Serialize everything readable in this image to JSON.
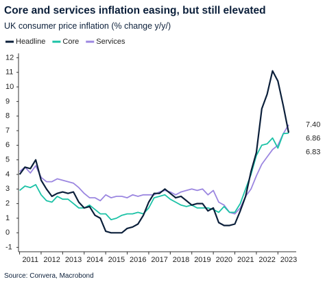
{
  "chart_data": {
    "type": "line",
    "title": "Core and services inflation easing, but still elevated",
    "subtitle": "UK consumer price inflation (% change y/y/)",
    "source": "Source: Convera, Macrobond",
    "x": [
      2011,
      2011.25,
      2011.5,
      2011.75,
      2012,
      2012.25,
      2012.5,
      2012.75,
      2013,
      2013.25,
      2013.5,
      2013.75,
      2014,
      2014.25,
      2014.5,
      2014.75,
      2015,
      2015.25,
      2015.5,
      2015.75,
      2016,
      2016.25,
      2016.5,
      2016.75,
      2017,
      2017.25,
      2017.5,
      2017.75,
      2018,
      2018.25,
      2018.5,
      2018.75,
      2019,
      2019.25,
      2019.5,
      2019.75,
      2020,
      2020.25,
      2020.5,
      2020.75,
      2021,
      2021.25,
      2021.5,
      2021.75,
      2022,
      2022.25,
      2022.5,
      2022.75,
      2023,
      2023.25,
      2023.5
    ],
    "series": [
      {
        "name": "Headline",
        "color": "#0b1f3a",
        "values": [
          4.0,
          4.5,
          4.4,
          5.0,
          3.6,
          3.0,
          2.5,
          2.7,
          2.8,
          2.7,
          2.8,
          2.1,
          1.7,
          1.8,
          1.2,
          1.0,
          0.1,
          0.0,
          0.0,
          0.0,
          0.3,
          0.4,
          0.6,
          1.2,
          2.1,
          2.7,
          2.7,
          3.0,
          2.7,
          2.4,
          2.5,
          2.2,
          1.9,
          2.0,
          2.0,
          1.5,
          1.7,
          0.7,
          0.5,
          0.5,
          0.6,
          1.5,
          2.5,
          4.2,
          5.5,
          8.5,
          9.5,
          11.1,
          10.4,
          8.7,
          6.86
        ],
        "value_labels": [
          null,
          null,
          null,
          null,
          null,
          null,
          null,
          null,
          null,
          null,
          null,
          null,
          null,
          null,
          null,
          null,
          null,
          null,
          null,
          null,
          null,
          null,
          null,
          null,
          null,
          null,
          null,
          null,
          null,
          null,
          null,
          null,
          null,
          null,
          null,
          null,
          null,
          null,
          null,
          null,
          null,
          null,
          null,
          null,
          null,
          null,
          null,
          null,
          null,
          null,
          "6.86"
        ]
      },
      {
        "name": "Core",
        "color": "#1bc2a6",
        "values": [
          2.9,
          3.2,
          3.1,
          3.3,
          2.6,
          2.2,
          2.1,
          2.5,
          2.3,
          2.3,
          2.0,
          1.7,
          1.7,
          1.9,
          1.6,
          1.3,
          1.3,
          0.9,
          1.0,
          1.2,
          1.3,
          1.3,
          1.4,
          1.3,
          1.7,
          2.4,
          2.5,
          2.6,
          2.3,
          2.1,
          1.9,
          1.8,
          1.9,
          1.7,
          1.7,
          1.7,
          1.6,
          1.4,
          1.8,
          1.4,
          1.4,
          2.0,
          3.0,
          4.0,
          5.3,
          6.0,
          6.1,
          6.5,
          5.8,
          6.8,
          6.83
        ],
        "value_labels": [
          null,
          null,
          null,
          null,
          null,
          null,
          null,
          null,
          null,
          null,
          null,
          null,
          null,
          null,
          null,
          null,
          null,
          null,
          null,
          null,
          null,
          null,
          null,
          null,
          null,
          null,
          null,
          null,
          null,
          null,
          null,
          null,
          null,
          null,
          null,
          null,
          null,
          null,
          null,
          null,
          null,
          null,
          null,
          null,
          null,
          null,
          null,
          null,
          null,
          null,
          "6.83"
        ]
      },
      {
        "name": "Services",
        "color": "#9b86e0",
        "values": [
          4.2,
          4.5,
          4.1,
          4.6,
          3.8,
          3.5,
          3.5,
          3.7,
          3.6,
          3.5,
          3.4,
          3.1,
          2.7,
          2.4,
          2.4,
          2.2,
          2.6,
          2.4,
          2.5,
          2.5,
          2.4,
          2.6,
          2.5,
          2.6,
          2.6,
          2.6,
          2.8,
          2.9,
          2.8,
          2.6,
          2.8,
          2.9,
          3.0,
          2.9,
          3.0,
          2.6,
          2.9,
          2.1,
          1.9,
          1.4,
          1.3,
          1.7,
          2.5,
          3.0,
          3.9,
          4.7,
          5.2,
          5.7,
          6.0,
          6.8,
          7.4
        ],
        "value_labels": [
          null,
          null,
          null,
          null,
          null,
          null,
          null,
          null,
          null,
          null,
          null,
          null,
          null,
          null,
          null,
          null,
          null,
          null,
          null,
          null,
          null,
          null,
          null,
          null,
          null,
          null,
          null,
          null,
          null,
          null,
          null,
          null,
          null,
          null,
          null,
          null,
          null,
          null,
          null,
          null,
          null,
          null,
          null,
          null,
          null,
          null,
          null,
          null,
          null,
          null,
          "7.40"
        ]
      }
    ],
    "xlim": [
      2010.95,
      2023.85
    ],
    "xticks": [
      2011,
      2012,
      2013,
      2014,
      2015,
      2016,
      2017,
      2018,
      2019,
      2020,
      2021,
      2022,
      2023
    ],
    "ylim": [
      -1.3,
      12.3
    ],
    "yticks": [
      -1,
      0,
      1,
      2,
      3,
      4,
      5,
      6,
      7,
      8,
      9,
      10,
      11,
      12
    ],
    "grid": false,
    "legend": "top-left"
  }
}
